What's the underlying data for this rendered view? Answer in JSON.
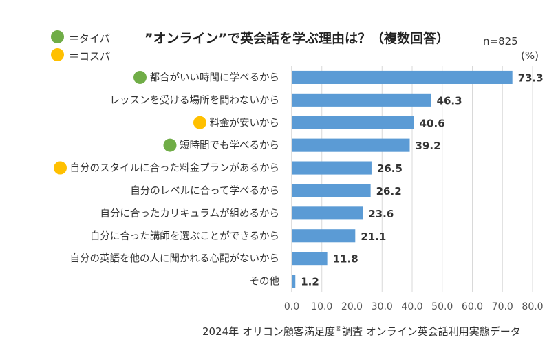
{
  "legend": [
    {
      "label": "＝タイパ",
      "color": "#70ad47"
    },
    {
      "label": "＝コスパ",
      "color": "#ffc000"
    }
  ],
  "sample_size": "n=825",
  "source": {
    "before": "2024年 オリコン顧客満足度",
    "mark": "®",
    "after": "調査 オンライン英会話利用実態データ"
  },
  "chart_data": {
    "type": "bar",
    "orientation": "horizontal",
    "title": "”オンライン”で英会話を学ぶ理由は？（複数回答）",
    "unit_label": "(%)",
    "bar_color": "#5b9bd5",
    "xlim": [
      0,
      80
    ],
    "ticks": [
      0,
      10,
      20,
      30,
      40,
      50,
      60,
      70,
      80
    ],
    "tick_labels": [
      "0.0",
      "10.0",
      "20.0",
      "30.0",
      "40.0",
      "50.0",
      "60.0",
      "70.0",
      "80.0"
    ],
    "grid": true,
    "categories": [
      "都合がいい時間に学べるから",
      "レッスンを受ける場所を問わないから",
      "料金が安いから",
      "短時間でも学べるから",
      "自分のスタイルに合った料金プランがあるから",
      "自分のレベルに合って学べるから",
      "自分に合ったカリキュラムが組めるから",
      "自分に合った講師を選ぶことができるから",
      "自分の英語を他の人に聞かれる心配がないから",
      "その他"
    ],
    "values": [
      73.3,
      46.3,
      40.6,
      39.2,
      26.5,
      26.2,
      23.6,
      21.1,
      11.8,
      1.2
    ],
    "value_labels": [
      "73.3",
      "46.3",
      "40.6",
      "39.2",
      "26.5",
      "26.2",
      "23.6",
      "21.1",
      "11.8",
      "1.2"
    ],
    "markers": [
      "タイパ",
      null,
      "コスパ",
      "タイパ",
      "コスパ",
      null,
      null,
      null,
      null,
      null
    ]
  }
}
